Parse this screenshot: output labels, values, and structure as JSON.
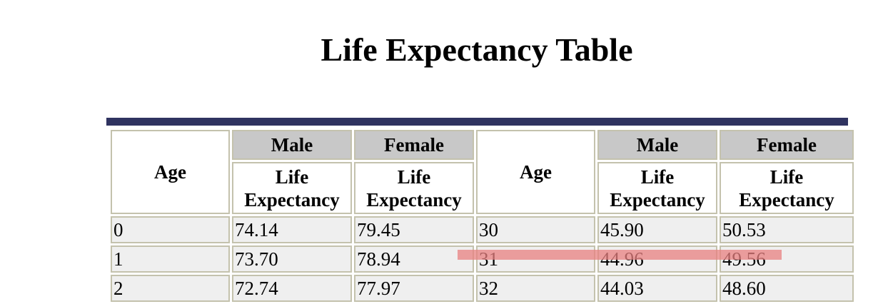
{
  "title": "Life Expectancy Table",
  "colors": {
    "rule": "#2f3360",
    "header_bg": "#c8c8c8",
    "cell_bg": "#efefef",
    "border": "#c4c2ad",
    "highlight": "#e88080"
  },
  "headers": {
    "age": "Age",
    "male": "Male",
    "female": "Female",
    "life_expectancy": "Life Expectancy"
  },
  "rows": [
    {
      "age1": "0",
      "male1": "74.14",
      "female1": "79.45",
      "age2": "30",
      "male2": "45.90",
      "female2": "50.53"
    },
    {
      "age1": "1",
      "male1": "73.70",
      "female1": "78.94",
      "age2": "31",
      "male2": "44.96",
      "female2": "49.56"
    },
    {
      "age1": "2",
      "male1": "72.74",
      "female1": "77.97",
      "age2": "32",
      "male2": "44.03",
      "female2": "48.60"
    }
  ]
}
